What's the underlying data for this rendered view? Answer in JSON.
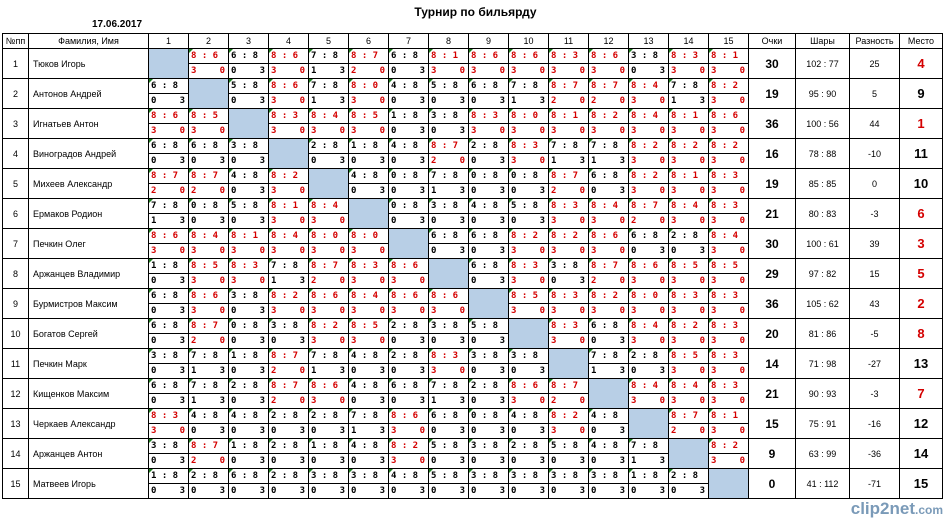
{
  "title": "Турнир по бильярду",
  "date": "17.06.2017",
  "logo": {
    "text": "clip2net",
    "suffix": ".com"
  },
  "headers": {
    "num": "№пп",
    "name": "Фамилия, Имя",
    "points": "Очки",
    "balls": "Шары",
    "diff": "Разность",
    "place": "Место"
  },
  "game_headers": [
    "1",
    "2",
    "3",
    "4",
    "5",
    "6",
    "7",
    "8",
    "9",
    "10",
    "11",
    "12",
    "13",
    "14",
    "15"
  ],
  "players": [
    {
      "num": "1",
      "name": "Тюков Игорь",
      "points": "30",
      "balls": "102  :  77",
      "diff": "25",
      "place": "4",
      "place_red": true,
      "games": [
        "X",
        "8:6|3|0",
        "6:8|0|3",
        "8:6|3|0",
        "7:8|1|3",
        "8:7|2|0",
        "6:8|0|3",
        "8:1|3|0",
        "8:6|3|0",
        "8:6|3|0",
        "8:3|3|0",
        "8:6|3|0",
        "3:8|0|3",
        "8:3|3|0",
        "8:1|3|0"
      ]
    },
    {
      "num": "2",
      "name": "Антонов Андрей",
      "points": "19",
      "balls": "95  :  90",
      "diff": "5",
      "place": "9",
      "place_red": false,
      "games": [
        "6:8|0|3",
        "X",
        "5:8|0|3",
        "8:6|3|0",
        "7:8|1|3",
        "8:0|3|0",
        "4:8|0|3",
        "5:8|0|3",
        "6:8|0|3",
        "7:8|1|3",
        "8:7|2|0",
        "8:7|2|0",
        "8:4|3|0",
        "7:8|1|3",
        "8:2|3|0"
      ]
    },
    {
      "num": "3",
      "name": "Игнатьев Антон",
      "points": "36",
      "balls": "100  :  56",
      "diff": "44",
      "place": "1",
      "place_red": true,
      "games": [
        "8:6|3|0",
        "8:5|3|0",
        "X",
        "8:3|3|0",
        "8:4|3|0",
        "8:5|3|0",
        "1:8|0|3",
        "3:8|0|3",
        "8:3|3|0",
        "8:0|3|0",
        "8:1|3|0",
        "8:2|3|0",
        "8:4|3|0",
        "8:1|3|0",
        "8:6|3|0"
      ]
    },
    {
      "num": "4",
      "name": "Виноградов Андрей",
      "points": "16",
      "balls": "78  :  88",
      "diff": "-10",
      "place": "11",
      "place_red": false,
      "games": [
        "6:8|0|3",
        "6:8|0|3",
        "3:8|0|3",
        "X",
        "2:8|0|3",
        "1:8|0|3",
        "4:8|0|3",
        "8:7|2|0",
        "2:8|0|3",
        "8:3|3|0",
        "7:8|1|3",
        "7:8|1|3",
        "8:2|3|0",
        "8:2|3|0",
        "8:2|3|0"
      ]
    },
    {
      "num": "5",
      "name": "Михеев Александр",
      "points": "19",
      "balls": "85  :  85",
      "diff": "0",
      "place": "10",
      "place_red": false,
      "games": [
        "8:7|2|0",
        "8:7|2|0",
        "4:8|0|3",
        "8:2|3|0",
        "X",
        "4:8|0|3",
        "0:8|0|3",
        "7:8|1|3",
        "0:8|0|3",
        "0:8|0|3",
        "8:7|2|0",
        "6:8|0|3",
        "8:2|3|0",
        "8:1|3|0",
        "8:3|3|0"
      ]
    },
    {
      "num": "6",
      "name": "Ермаков Родион",
      "points": "21",
      "balls": "80  :  83",
      "diff": "-3",
      "place": "6",
      "place_red": true,
      "games": [
        "7:8|1|3",
        "0:8|0|3",
        "5:8|0|3",
        "8:1|3|0",
        "8:4|3|0",
        "X",
        "0:8|0|3",
        "3:8|0|3",
        "4:8|0|3",
        "5:8|0|3",
        "8:3|3|0",
        "8:4|3|0",
        "8:7|2|0",
        "8:4|3|0",
        "8:3|3|0"
      ]
    },
    {
      "num": "7",
      "name": "Печкин Олег",
      "points": "30",
      "balls": "100  :  61",
      "diff": "39",
      "place": "3",
      "place_red": true,
      "games": [
        "8:6|3|0",
        "8:4|3|0",
        "8:1|3|0",
        "8:4|3|0",
        "8:0|3|0",
        "8:0|3|0",
        "X",
        "6:8|0|3",
        "6:8|0|3",
        "8:2|3|0",
        "8:2|3|0",
        "8:6|3|0",
        "6:8|0|3",
        "2:8|0|3",
        "8:4|3|0"
      ]
    },
    {
      "num": "8",
      "name": "Аржанцев Владимир",
      "points": "29",
      "balls": "97  :  82",
      "diff": "15",
      "place": "5",
      "place_red": true,
      "games": [
        "1:8|0|3",
        "8:5|3|0",
        "8:3|3|0",
        "7:8|1|3",
        "8:7|2|0",
        "8:3|3|0",
        "8:6|3|0",
        "X",
        "6:8|0|3",
        "8:3|3|0",
        "3:8|0|3",
        "8:7|2|0",
        "8:6|3|0",
        "8:5|3|0",
        "8:5|3|0"
      ]
    },
    {
      "num": "9",
      "name": "Бурмистров Максим",
      "points": "36",
      "balls": "105  :  62",
      "diff": "43",
      "place": "2",
      "place_red": true,
      "games": [
        "6:8|0|3",
        "8:6|3|0",
        "3:8|0|3",
        "8:2|3|0",
        "8:6|3|0",
        "8:4|3|0",
        "8:6|3|0",
        "8:6|3|0",
        "X",
        "8:5|3|0",
        "8:3|3|0",
        "8:2|3|0",
        "8:0|3|0",
        "8:3|3|0",
        "8:3|3|0"
      ]
    },
    {
      "num": "10",
      "name": "Богатов Сергей",
      "points": "20",
      "balls": "81  :  86",
      "diff": "-5",
      "place": "8",
      "place_red": true,
      "games": [
        "6:8|0|3",
        "8:7|2|0",
        "0:8|0|3",
        "3:8|0|3",
        "8:2|3|0",
        "8:5|3|0",
        "2:8|0|3",
        "3:8|0|3",
        "5:8|0|3",
        "X",
        "8:3|3|0",
        "6:8|0|3",
        "8:4|3|0",
        "8:2|3|0",
        "8:3|3|0"
      ]
    },
    {
      "num": "11",
      "name": "Печкин Марк",
      "points": "14",
      "balls": "71  :  98",
      "diff": "-27",
      "place": "13",
      "place_red": false,
      "games": [
        "3:8|0|3",
        "7:8|1|3",
        "1:8|0|3",
        "8:7|2|0",
        "7:8|1|3",
        "4:8|0|3",
        "2:8|0|3",
        "8:3|3|0",
        "3:8|0|3",
        "3:8|0|3",
        "X",
        "7:8|1|3",
        "2:8|0|3",
        "8:5|3|0",
        "8:3|3|0"
      ]
    },
    {
      "num": "12",
      "name": "Кищенков Максим",
      "points": "21",
      "balls": "90  :  93",
      "diff": "-3",
      "place": "7",
      "place_red": true,
      "games": [
        "6:8|0|3",
        "7:8|1|3",
        "2:8|0|3",
        "8:7|2|0",
        "8:6|3|0",
        "4:8|0|3",
        "6:8|0|3",
        "7:8|1|3",
        "2:8|0|3",
        "8:6|3|0",
        "8:7|2|0",
        "X",
        "8:4|3|0",
        "8:4|3|0",
        "8:3|3|0"
      ]
    },
    {
      "num": "13",
      "name": "Черкаев Александр",
      "points": "15",
      "balls": "75  :  91",
      "diff": "-16",
      "place": "12",
      "place_red": false,
      "games": [
        "8:3|3|0",
        "4:8|0|3",
        "4:8|0|3",
        "2:8|0|3",
        "2:8|0|3",
        "7:8|1|3",
        "8:6|3|0",
        "6:8|0|3",
        "0:8|0|3",
        "4:8|0|3",
        "8:2|3|0",
        "4:8|0|3",
        "X",
        "8:7|2|0",
        "8:1|3|0"
      ]
    },
    {
      "num": "14",
      "name": "Аржанцев Антон",
      "points": "9",
      "balls": "63  :  99",
      "diff": "-36",
      "place": "14",
      "place_red": false,
      "games": [
        "3:8|0|3",
        "8:7|2|0",
        "1:8|0|3",
        "2:8|0|3",
        "1:8|0|3",
        "4:8|0|3",
        "8:2|3|0",
        "5:8|0|3",
        "3:8|0|3",
        "2:8|0|3",
        "5:8|0|3",
        "4:8|0|3",
        "7:8|1|3",
        "X",
        "8:2|3|0"
      ]
    },
    {
      "num": "15",
      "name": "Матвеев Игорь",
      "points": "0",
      "balls": "41  :  112",
      "diff": "-71",
      "place": "15",
      "place_red": false,
      "games": [
        "1:8|0|3",
        "2:8|0|3",
        "6:8|0|3",
        "2:8|0|3",
        "3:8|0|3",
        "3:8|0|3",
        "4:8|0|3",
        "5:8|0|3",
        "3:8|0|3",
        "3:8|0|3",
        "3:8|0|3",
        "3:8|0|3",
        "1:8|0|3",
        "2:8|0|3",
        "X"
      ]
    }
  ],
  "colors": {
    "win": "#d40000",
    "loss": "#000000",
    "diag": "#b8cfe6",
    "corner": "#1a7a1a"
  }
}
